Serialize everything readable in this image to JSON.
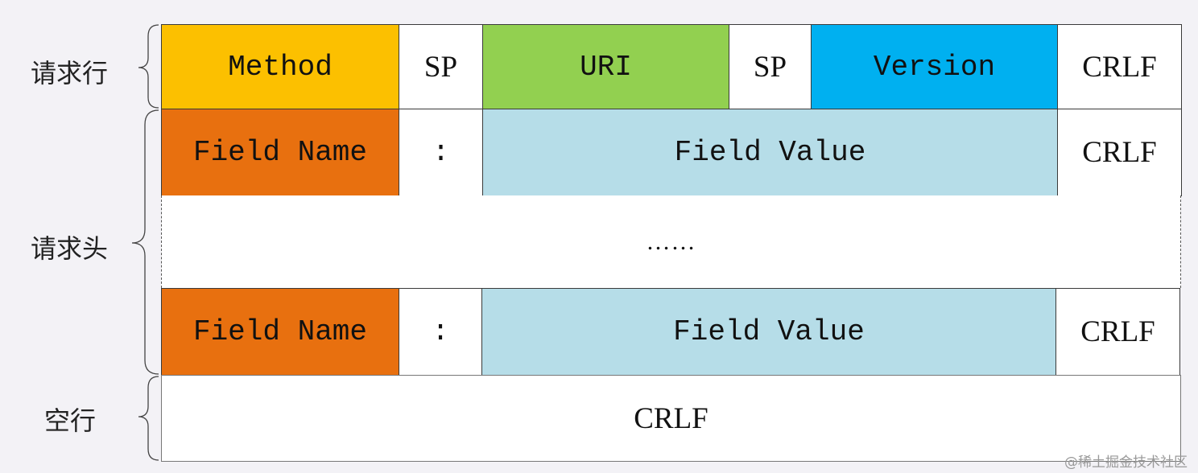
{
  "labels": {
    "request_line": "请求行",
    "request_header": "请求头",
    "blank_line": "空行"
  },
  "request_line": {
    "method": "Method",
    "sp1": "SP",
    "uri": "URI",
    "sp2": "SP",
    "version": "Version",
    "crlf": "CRLF"
  },
  "header_rows": [
    {
      "field_name": "Field Name",
      "colon": ":",
      "field_value": "Field Value",
      "crlf": "CRLF"
    },
    {
      "field_name": "Field Name",
      "colon": ":",
      "field_value": "Field Value",
      "crlf": "CRLF"
    }
  ],
  "ellipsis": "……",
  "blank_line_crlf": "CRLF",
  "watermark": "@稀土掘金技术社区",
  "colors": {
    "method": "#fcc000",
    "uri": "#92d050",
    "version": "#00b0f0",
    "field_name": "#e8700f",
    "field_value": "#b6dde8"
  }
}
